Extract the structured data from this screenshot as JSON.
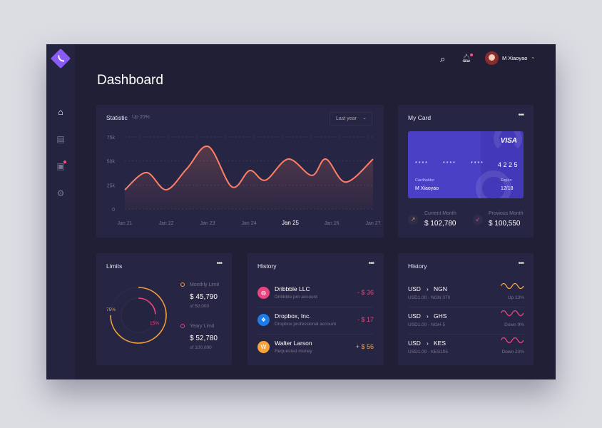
{
  "header": {
    "title": "Dashboard",
    "user_name": "M Xiaoyao"
  },
  "sidebar": {
    "items": [
      {
        "name": "home",
        "icon": "home-icon"
      },
      {
        "name": "inbox",
        "icon": "inbox-icon"
      },
      {
        "name": "messages",
        "icon": "chat-icon"
      },
      {
        "name": "settings",
        "icon": "gear-icon"
      }
    ]
  },
  "statistic": {
    "title": "Statistic",
    "subtitle": "Up 20%",
    "range": "Last year"
  },
  "chart_data": {
    "type": "line",
    "title": "Statistic",
    "ylim": [
      0,
      75000
    ],
    "yticks": [
      "75k",
      "50k",
      "25k",
      "0"
    ],
    "ytick_values": [
      75000,
      50000,
      25000,
      0
    ],
    "categories": [
      "Jan 21",
      "Jan 22",
      "Jan 23",
      "Jan 24",
      "Jan 25",
      "Jan 26",
      "Jan 27"
    ],
    "highlight": "Jan 25",
    "x": [
      21,
      21.52,
      22,
      22.5,
      23.02,
      23.59,
      24.02,
      24.4,
      24.95,
      25.52,
      25.86,
      26.34,
      27
    ],
    "values": [
      20000,
      38000,
      20000,
      42000,
      65000,
      23000,
      40000,
      30000,
      52000,
      35000,
      52000,
      28000,
      52000
    ],
    "line_color": "#ff7f66"
  },
  "my_card": {
    "title": "My Card",
    "brand": "VISA",
    "masked": [
      "****",
      "****",
      "****"
    ],
    "last4": "4 2 2 5",
    "holder_label": "Cardholder",
    "holder": "M Xiaoyao",
    "expire_label": "Expiro",
    "expire": "12/18",
    "current_label": "Current Month",
    "current": "$ 102,780",
    "previous_label": "Provious Month",
    "previous": "$ 100,550"
  },
  "limits": {
    "title": "Limits",
    "pct_outer": "75%",
    "pct_inner": "15%",
    "outer_fraction": 0.75,
    "inner_fraction": 0.15,
    "monthly_label": "Monthly Limit",
    "monthly": "$ 45,790",
    "monthly_of": "of 50,000",
    "yearly_label": "Yeary Limit",
    "yearly": "$ 52,780",
    "yearly_of": "of 100,000"
  },
  "history": {
    "title": "History",
    "items": [
      {
        "name": "Dribbble LLC",
        "desc": "Dribbble pro account",
        "amount": "- $ 36",
        "color": "#e8457f",
        "avatar": "dribbble-icon"
      },
      {
        "name": "Dropbox, Inc.",
        "desc": "Dropbox professional account",
        "amount": "- $ 17",
        "color": "#e8457f",
        "avatar": "dropbox-icon"
      },
      {
        "name": "Walter Larson",
        "desc": "Requested money",
        "amount": "+ $ 56",
        "color": "#f5a33a",
        "avatar": "W"
      }
    ]
  },
  "rates": {
    "title": "History",
    "items": [
      {
        "from": "USD",
        "to": "NGN",
        "rate": "USD1.00 - NGN 370",
        "change": "Up 13%",
        "color": "#f5a33a"
      },
      {
        "from": "USD",
        "to": "GHS",
        "rate": "USD1.00 - NGH 5",
        "change": "Down 9%",
        "color": "#e8457f"
      },
      {
        "from": "USD",
        "to": "KES",
        "rate": "USD1.00 - KES105",
        "change": "Down  23%",
        "color": "#e8457f"
      }
    ]
  }
}
